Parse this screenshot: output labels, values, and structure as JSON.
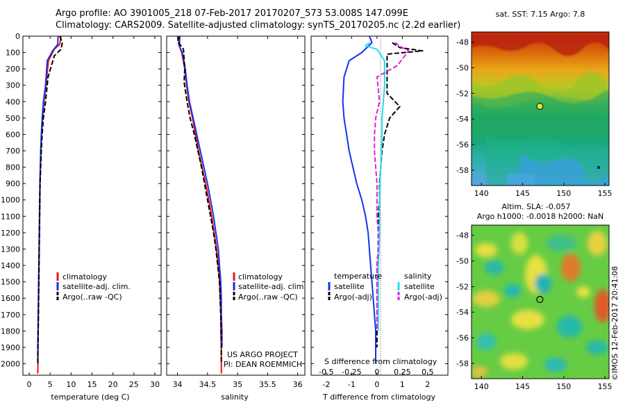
{
  "header": {
    "line1": "Argo profile: AO 3901005_218 07-Feb-2017 20170207_573 53.008S 147.099E",
    "line2": "Climatology: CARS2009. Satellite-adjusted climatology: synTS_20170205.nc (2.2d earlier)"
  },
  "colors": {
    "climatology": "#ee1111",
    "satellite": "#1133ee",
    "argo": "#000000",
    "sat_salinity": "#22ddee",
    "argo_salinity": "#dd22dd"
  },
  "depth_axis": {
    "ticks": [
      0,
      100,
      200,
      300,
      400,
      500,
      600,
      700,
      800,
      900,
      1000,
      1100,
      1200,
      1300,
      1400,
      1500,
      1600,
      1700,
      1800,
      1900,
      2000
    ],
    "ylim": [
      0,
      2070
    ]
  },
  "chart_data": [
    {
      "type": "line",
      "xlabel": "temperature (deg C)",
      "xticks": [
        0,
        5,
        10,
        15,
        20,
        25,
        30
      ],
      "xlim": [
        -1.5,
        31.5
      ],
      "legend": [
        "climatology",
        "satellite-adj. clim.",
        "Argo(..raw -QC)"
      ],
      "series": [
        {
          "name": "climatology",
          "style": "solid",
          "color": "#ee1111",
          "x": [
            7.6,
            7.3,
            6.0,
            4.6,
            4.0,
            3.5,
            3.2,
            2.95,
            2.8,
            2.7,
            2.6,
            2.55,
            2.5,
            2.45,
            2.4,
            2.35,
            2.3,
            2.25,
            2.2,
            2.15,
            2.1,
            2.1,
            2.05
          ],
          "y": [
            0,
            50,
            80,
            150,
            300,
            400,
            500,
            600,
            700,
            800,
            900,
            1000,
            1100,
            1200,
            1300,
            1400,
            1500,
            1600,
            1700,
            1800,
            1900,
            2000,
            2060
          ]
        },
        {
          "name": "satellite-adj. clim.",
          "style": "solid",
          "color": "#1133ee",
          "x": [
            6.9,
            6.8,
            5.6,
            4.3,
            3.9,
            3.4,
            3.1,
            2.9,
            2.75,
            2.65,
            2.55,
            2.5,
            2.45,
            2.4,
            2.35,
            2.3,
            2.25,
            2.2,
            2.15,
            2.1,
            2.05,
            2.05
          ],
          "y": [
            0,
            50,
            90,
            150,
            300,
            400,
            500,
            600,
            700,
            800,
            900,
            1000,
            1100,
            1200,
            1300,
            1400,
            1500,
            1600,
            1700,
            1800,
            1900,
            2000
          ]
        },
        {
          "name": "Argo(..raw -QC)",
          "style": "dashed",
          "color": "#000000",
          "x": [
            7.3,
            7.9,
            7.6,
            6.0,
            4.5,
            3.9,
            3.4,
            3.1,
            2.9,
            2.75,
            2.6,
            2.55,
            2.5,
            2.45,
            2.4,
            2.35,
            2.3,
            2.25,
            2.2,
            2.15,
            2.1,
            2.05
          ],
          "y": [
            0,
            40,
            80,
            120,
            250,
            400,
            500,
            600,
            700,
            800,
            900,
            1000,
            1100,
            1200,
            1300,
            1400,
            1500,
            1600,
            1700,
            1800,
            1900,
            2000
          ]
        }
      ]
    },
    {
      "type": "line",
      "xlabel": "salinity",
      "xticks": [
        34,
        34.5,
        35,
        35.5,
        36
      ],
      "xtick_labels": [
        "34",
        "34.5",
        "35",
        "35.5",
        "36"
      ],
      "xlim": [
        33.82,
        36.12
      ],
      "legend": [
        "climatology",
        "satellite-adj. clim.",
        "Argo(..raw -QC)"
      ],
      "annotation": [
        "US ARGO PROJECT",
        "PI: DEAN ROEMMICH"
      ],
      "series": [
        {
          "name": "climatology",
          "style": "solid",
          "color": "#ee1111",
          "x": [
            34.02,
            34.02,
            34.07,
            34.12,
            34.15,
            34.19,
            34.25,
            34.3,
            34.35,
            34.41,
            34.47,
            34.52,
            34.57,
            34.61,
            34.65,
            34.68,
            34.7,
            34.71,
            34.72,
            34.72,
            34.73,
            34.73,
            34.73
          ],
          "y": [
            0,
            50,
            100,
            200,
            300,
            400,
            500,
            600,
            700,
            800,
            900,
            1000,
            1100,
            1200,
            1300,
            1400,
            1500,
            1600,
            1700,
            1800,
            1900,
            2000,
            2060
          ]
        },
        {
          "name": "satellite-adj. clim.",
          "style": "solid",
          "color": "#1133ee",
          "x": [
            34.04,
            34.03,
            34.08,
            34.13,
            34.16,
            34.2,
            34.26,
            34.32,
            34.38,
            34.44,
            34.5,
            34.55,
            34.6,
            34.64,
            34.68,
            34.7,
            34.72,
            34.73,
            34.73,
            34.74,
            34.74
          ],
          "y": [
            0,
            60,
            100,
            200,
            300,
            400,
            500,
            600,
            700,
            800,
            900,
            1000,
            1100,
            1200,
            1300,
            1400,
            1500,
            1600,
            1700,
            1800,
            1900
          ]
        },
        {
          "name": "Argo(..raw -QC)",
          "style": "dashed",
          "color": "#000000",
          "x": [
            34.03,
            34.0,
            34.1,
            34.12,
            34.11,
            34.16,
            34.21,
            34.28,
            34.34,
            34.4,
            34.45,
            34.5,
            34.55,
            34.6,
            34.64,
            34.67,
            34.7,
            34.71,
            34.72,
            34.73,
            34.73,
            34.73
          ],
          "y": [
            0,
            30,
            80,
            200,
            280,
            400,
            500,
            600,
            700,
            800,
            900,
            1000,
            1100,
            1200,
            1300,
            1400,
            1500,
            1600,
            1700,
            1800,
            1900,
            2000
          ]
        }
      ]
    },
    {
      "type": "line",
      "xlabel": "T difference from climatology",
      "xticks": [
        -2,
        -1,
        0,
        1,
        2
      ],
      "xlim": [
        -2.6,
        2.8
      ],
      "xlabel_top": "S difference from climatology",
      "xticks_top": [
        -0.5,
        -0.25,
        0,
        0.25,
        0.5
      ],
      "xtick_labels_top": [
        "-0.5",
        "-0.25",
        "0",
        "0.25",
        "0.5"
      ],
      "legend_temperature": [
        "temperature",
        "satellite",
        "Argo(-adj)"
      ],
      "legend_salinity": [
        "salinity",
        "satellite",
        "Argo(-adj)"
      ],
      "series": [
        {
          "name": "satellite",
          "group": "temperature",
          "style": "solid",
          "color": "#1133ee",
          "x": [
            -0.3,
            -0.2,
            -0.6,
            -1.1,
            -1.3,
            -1.35,
            -1.3,
            -1.2,
            -1.1,
            -0.95,
            -0.8,
            -0.6,
            -0.45,
            -0.35,
            -0.3,
            -0.25,
            -0.2,
            -0.15,
            -0.1,
            -0.05,
            -0.05,
            -0.05
          ],
          "y": [
            0,
            40,
            100,
            150,
            250,
            400,
            500,
            600,
            700,
            800,
            900,
            1000,
            1100,
            1200,
            1300,
            1400,
            1500,
            1600,
            1700,
            1800,
            1900,
            2000
          ]
        },
        {
          "name": "Argo(-adj)",
          "group": "temperature",
          "style": "dashed",
          "color": "#000000",
          "x": [
            0.6,
            0.9,
            1.8,
            0.4,
            0.4,
            0.9,
            0.5,
            0.3,
            0.2,
            0.15,
            0.1,
            0.1,
            0.05,
            0.05,
            0.05,
            0.0,
            0.0,
            0.0,
            0.0,
            0.0,
            0.0
          ],
          "y": [
            40,
            70,
            90,
            110,
            350,
            430,
            500,
            600,
            700,
            800,
            900,
            1000,
            1100,
            1200,
            1300,
            1400,
            1500,
            1600,
            1700,
            1800,
            1900
          ]
        },
        {
          "name": "satellite",
          "group": "salinity",
          "style": "solid",
          "color": "#22ddee",
          "x": [
            -0.3,
            -0.45,
            0.0,
            0.3,
            0.3,
            0.25,
            0.2,
            0.2,
            0.18,
            0.15,
            0.12,
            0.1,
            0.1,
            0.1,
            0.08,
            0.05,
            0.05,
            0.05,
            0.05,
            0.05
          ],
          "y": [
            40,
            60,
            80,
            150,
            300,
            400,
            500,
            600,
            700,
            800,
            900,
            1000,
            1100,
            1200,
            1300,
            1400,
            1500,
            1600,
            1700,
            1800
          ]
        },
        {
          "name": "Argo(-adj)",
          "group": "salinity",
          "style": "dashed",
          "color": "#dd22dd",
          "x": [
            0.7,
            1.0,
            1.25,
            0.8,
            0.0,
            0.1,
            -0.05,
            -0.1,
            -0.1,
            -0.05,
            0.0,
            0.0,
            0.0,
            0.05,
            0.05,
            0.0,
            0.0,
            0.0,
            0.0,
            0.0
          ],
          "y": [
            40,
            70,
            90,
            180,
            250,
            400,
            500,
            600,
            700,
            800,
            900,
            1000,
            1100,
            1200,
            1300,
            1400,
            1500,
            1600,
            1700,
            1800
          ]
        }
      ]
    },
    {
      "type": "heatmap",
      "title": "sat. SST: 7.15 Argo: 7.8",
      "xticks": [
        140,
        145,
        150,
        155
      ],
      "yticks": [
        -48,
        -50,
        -52,
        -54,
        -56,
        -58
      ],
      "xlim": [
        138.8,
        155.5
      ],
      "ylim": [
        -59.2,
        -47.2
      ],
      "marker": {
        "lon": 147.099,
        "lat": -53.008
      }
    },
    {
      "type": "heatmap",
      "title": "Altim. SLA: -0.057",
      "subtitle": "Argo h1000: -0.0018 h2000: NaN",
      "xticks": [
        140,
        145,
        150,
        155
      ],
      "yticks": [
        -48,
        -50,
        -52,
        -54,
        -56,
        -58
      ],
      "xlim": [
        138.8,
        155.5
      ],
      "ylim": [
        -59.2,
        -47.2
      ],
      "marker": {
        "lon": 147.099,
        "lat": -53.008
      }
    }
  ],
  "credit": "©IMOS 12-Feb-2017 20:41:08"
}
